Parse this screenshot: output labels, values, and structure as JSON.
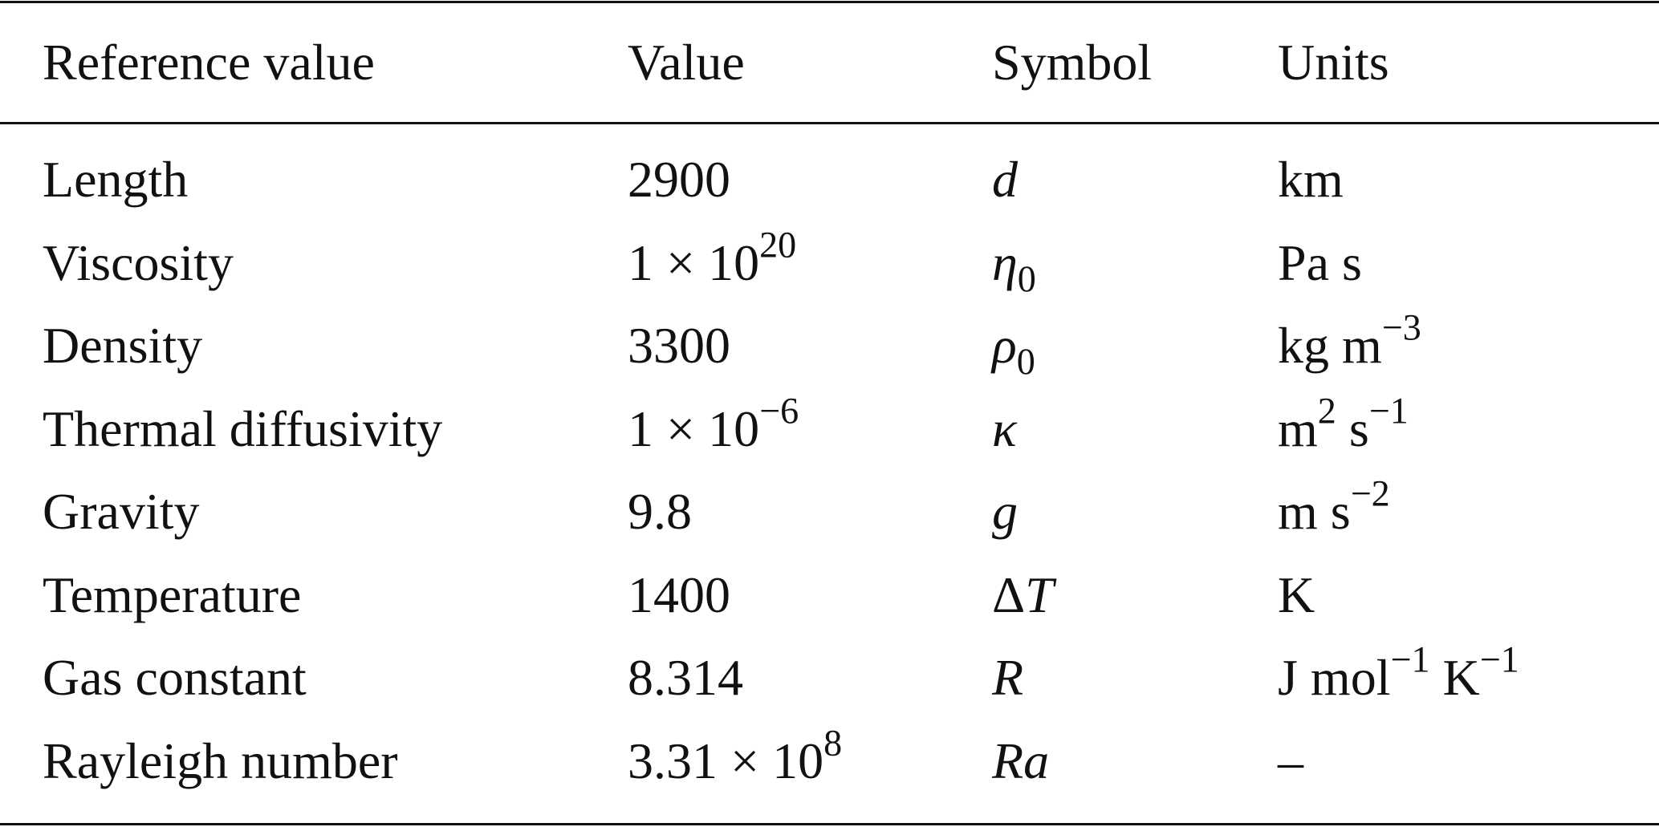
{
  "table": {
    "header": [
      "Reference value",
      "Value",
      "Symbol",
      "Units"
    ],
    "rows": [
      [
        "Length",
        "2900",
        [
          {
            "italic": "d"
          }
        ],
        "km"
      ],
      [
        "Viscosity",
        [
          {
            "text": "1 × 10"
          },
          {
            "sup": "20"
          }
        ],
        [
          {
            "italic": "η"
          },
          {
            "sub": "0"
          }
        ],
        "Pa s"
      ],
      [
        "Density",
        "3300",
        [
          {
            "italic": "ρ"
          },
          {
            "sub": "0"
          }
        ],
        [
          {
            "text": "kg m"
          },
          {
            "sup": "−3"
          }
        ]
      ],
      [
        "Thermal diffusivity",
        [
          {
            "text": "1 × 10"
          },
          {
            "sup": "−6"
          }
        ],
        [
          {
            "italic": "κ"
          }
        ],
        [
          {
            "text": "m"
          },
          {
            "sup": "2"
          },
          {
            "text": " s"
          },
          {
            "sup": "−1"
          }
        ]
      ],
      [
        "Gravity",
        "9.8",
        [
          {
            "italic": "g"
          }
        ],
        [
          {
            "text": "m s"
          },
          {
            "sup": "−2"
          }
        ]
      ],
      [
        "Temperature",
        "1400",
        [
          {
            "text": "Δ"
          },
          {
            "italic": "T"
          }
        ],
        "K"
      ],
      [
        "Gas constant",
        "8.314",
        [
          {
            "italic": "R"
          }
        ],
        [
          {
            "text": "J mol"
          },
          {
            "sup": "−1"
          },
          {
            "text": " K"
          },
          {
            "sup": "−1"
          }
        ]
      ],
      [
        "Rayleigh number",
        [
          {
            "text": "3.31 × 10"
          },
          {
            "sup": "8"
          }
        ],
        [
          {
            "italic": "Ra"
          }
        ],
        "–"
      ]
    ]
  }
}
